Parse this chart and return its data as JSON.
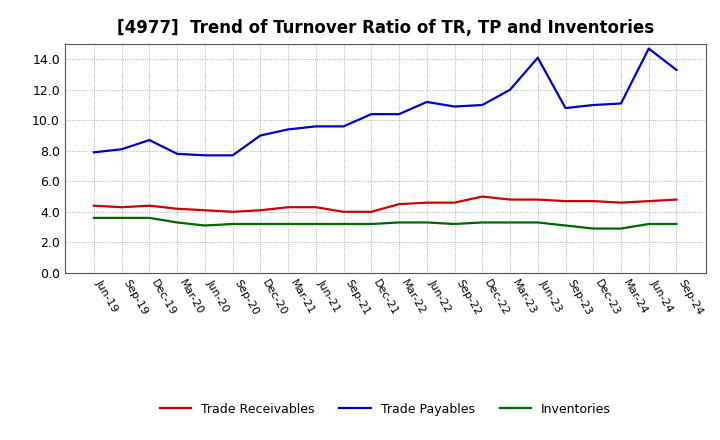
{
  "title": "[4977]  Trend of Turnover Ratio of TR, TP and Inventories",
  "labels": [
    "Jun-19",
    "Sep-19",
    "Dec-19",
    "Mar-20",
    "Jun-20",
    "Sep-20",
    "Dec-20",
    "Mar-21",
    "Jun-21",
    "Sep-21",
    "Dec-21",
    "Mar-22",
    "Jun-22",
    "Sep-22",
    "Dec-22",
    "Mar-23",
    "Jun-23",
    "Sep-23",
    "Dec-23",
    "Mar-24",
    "Jun-24",
    "Sep-24"
  ],
  "trade_receivables": [
    4.4,
    4.3,
    4.4,
    4.2,
    4.1,
    4.0,
    4.1,
    4.3,
    4.3,
    4.0,
    4.0,
    4.5,
    4.6,
    4.6,
    5.0,
    4.8,
    4.8,
    4.7,
    4.7,
    4.6,
    4.7,
    4.8
  ],
  "trade_payables": [
    7.9,
    8.1,
    8.7,
    7.8,
    7.7,
    7.7,
    9.0,
    9.4,
    9.6,
    9.6,
    10.4,
    10.4,
    11.2,
    10.9,
    11.0,
    12.0,
    14.1,
    10.8,
    11.0,
    11.1,
    14.7,
    13.3
  ],
  "inventories": [
    3.6,
    3.6,
    3.6,
    3.3,
    3.1,
    3.2,
    3.2,
    3.2,
    3.2,
    3.2,
    3.2,
    3.3,
    3.3,
    3.2,
    3.3,
    3.3,
    3.3,
    3.1,
    2.9,
    2.9,
    3.2,
    3.2
  ],
  "color_tr": "#cc0000",
  "color_tp": "#0000cc",
  "color_inv": "#006600",
  "ylim": [
    0.0,
    15.0
  ],
  "yticks": [
    0.0,
    2.0,
    4.0,
    6.0,
    8.0,
    10.0,
    12.0,
    14.0
  ],
  "background_color": "#ffffff",
  "grid_color": "#999999",
  "legend_tr": "Trade Receivables",
  "legend_tp": "Trade Payables",
  "legend_inv": "Inventories",
  "title_fontsize": 12,
  "tick_fontsize": 8,
  "legend_fontsize": 9
}
